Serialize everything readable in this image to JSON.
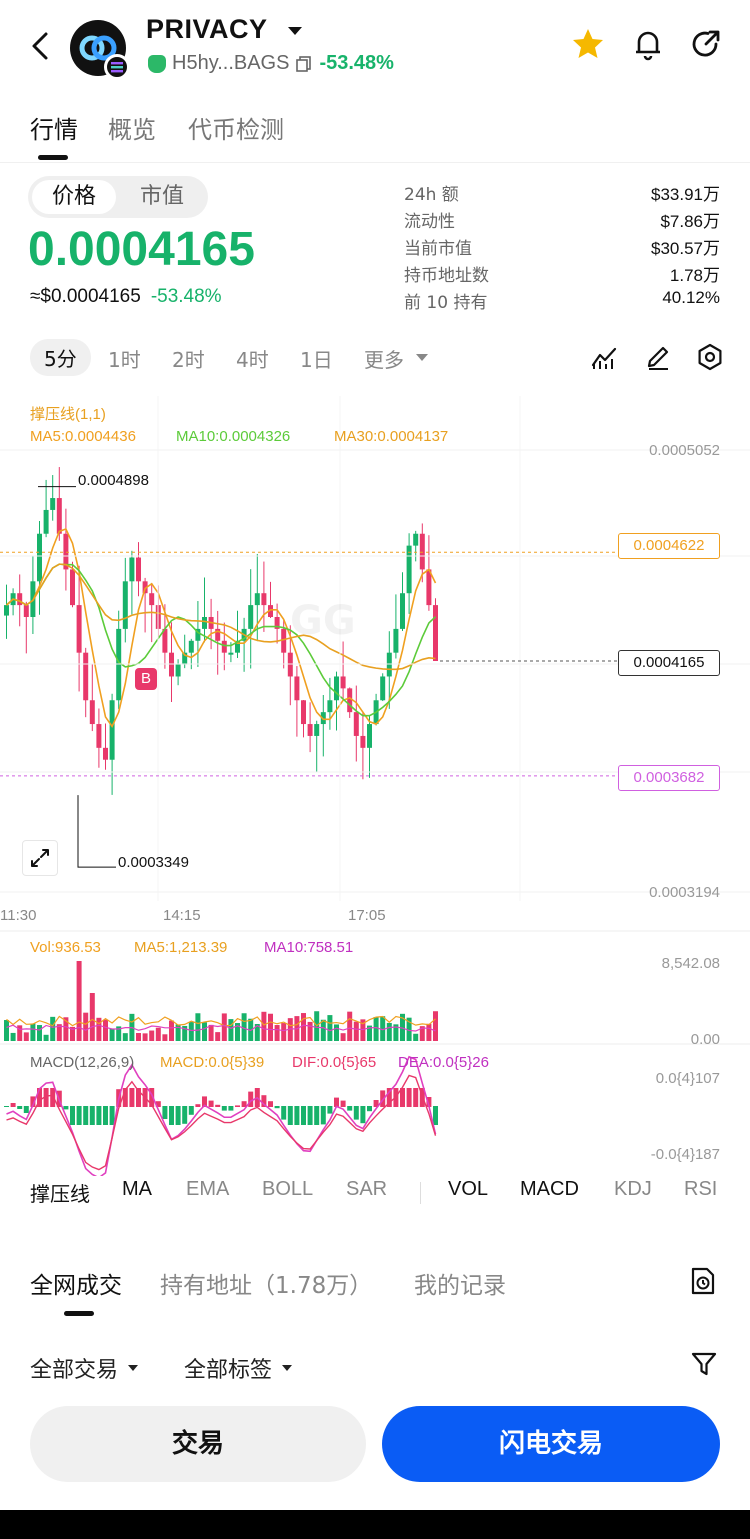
{
  "header": {
    "token_name": "PRIVACY",
    "contract_short": "H5hy...BAGS",
    "change_pct": "-53.48%"
  },
  "tabs": [
    "行情",
    "概览",
    "代币检测"
  ],
  "price_toggle": {
    "price": "价格",
    "mcap": "市值"
  },
  "price": {
    "main": "0.0004165",
    "usd": "≈$0.0004165",
    "change": "-53.48%"
  },
  "stats": [
    {
      "k": "24h  额",
      "v": "$33.91万"
    },
    {
      "k": "流动性",
      "v": "$7.86万"
    },
    {
      "k": "当前市值",
      "v": "$30.57万"
    },
    {
      "k": "持币地址数",
      "v": "1.78万"
    },
    {
      "k": "前 10 持有",
      "v": "40.12%"
    }
  ],
  "intervals": [
    "5分",
    "1时",
    "2时",
    "4时",
    "1日",
    "更多"
  ],
  "chart": {
    "sr_label": "撑压线(1,1)",
    "ma5": "MA5:0.0004436",
    "ma10": "MA10:0.0004326",
    "ma30": "MA30:0.0004137",
    "axis_top": "0.0005052",
    "axis_bottom": "0.0003194",
    "resistance": "0.0004622",
    "current": "0.0004165",
    "support": "0.0003682",
    "high_mark": "0.0004898",
    "low_mark": "0.0003349",
    "buy_marker": "B",
    "times": [
      "11:30",
      "14:15",
      "17:05"
    ],
    "vol": "Vol:936.53",
    "vol_ma5": "MA5:1,213.39",
    "vol_ma10": "MA10:758.51",
    "vol_top": "8,542.08",
    "vol_bottom": "0.00",
    "macd_label": "MACD(12,26,9)",
    "macd_val": "MACD:0.0{5}39",
    "dif_val": "DIF:0.0{5}65",
    "dea_val": "DEA:0.0{5}26",
    "macd_top": "0.0{4}107",
    "macd_bottom": "-0.0{4}187",
    "watermark": "GG",
    "colors": {
      "up": "#17b26a",
      "down": "#e8386a",
      "ma5": "#f0a020",
      "ma10": "#5ccb3a",
      "ma30": "#e8a020",
      "resistance": "#f0a020",
      "support": "#d060e0",
      "macd_pink": "#e040c0"
    }
  },
  "indicators": [
    "撑压线",
    "MA",
    "EMA",
    "BOLL",
    "SAR",
    "VOL",
    "MACD",
    "KDJ",
    "RSI"
  ],
  "bottom_tabs": [
    "全网成交",
    "持有地址（1.78万）",
    "我的记录"
  ],
  "filters": [
    "全部交易",
    "全部标签"
  ],
  "buttons": {
    "trade": "交易",
    "flash": "闪电交易"
  }
}
